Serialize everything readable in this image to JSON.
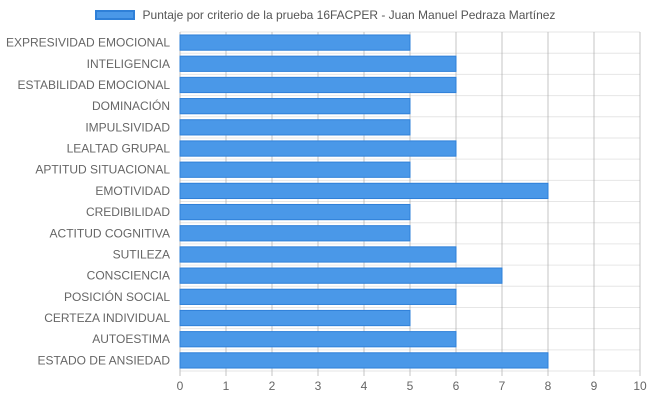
{
  "colors": {
    "bar_fill": "#4a98e8",
    "bar_stroke": "#2f80d8",
    "grid": "#e6e6e6",
    "grid_dark": "#999999",
    "text": "#666666"
  },
  "chart_data": {
    "type": "bar",
    "orientation": "horizontal",
    "legend": {
      "position": "top-center"
    },
    "grid": true,
    "xlim": [
      0,
      10
    ],
    "x_ticks": [
      "0",
      "1",
      "2",
      "3",
      "4",
      "5",
      "6",
      "7",
      "8",
      "9",
      "10"
    ],
    "categories": [
      "EXPRESIVIDAD EMOCIONAL",
      "INTELIGENCIA",
      "ESTABILIDAD EMOCIONAL",
      "DOMINACIÓN",
      "IMPULSIVIDAD",
      "LEALTAD GRUPAL",
      "APTITUD SITUACIONAL",
      "EMOTIVIDAD",
      "CREDIBILIDAD",
      "ACTITUD COGNITIVA",
      "SUTILEZA",
      "CONSCIENCIA",
      "POSICIÓN SOCIAL",
      "CERTEZA INDIVIDUAL",
      "AUTOESTIMA",
      "ESTADO DE ANSIEDAD"
    ],
    "series": [
      {
        "name": "Puntaje por criterio de la prueba 16FACPER - Juan Manuel Pedraza Martínez",
        "values": [
          5,
          6,
          6,
          5,
          5,
          6,
          5,
          8,
          5,
          5,
          6,
          7,
          6,
          5,
          6,
          8
        ]
      }
    ]
  }
}
